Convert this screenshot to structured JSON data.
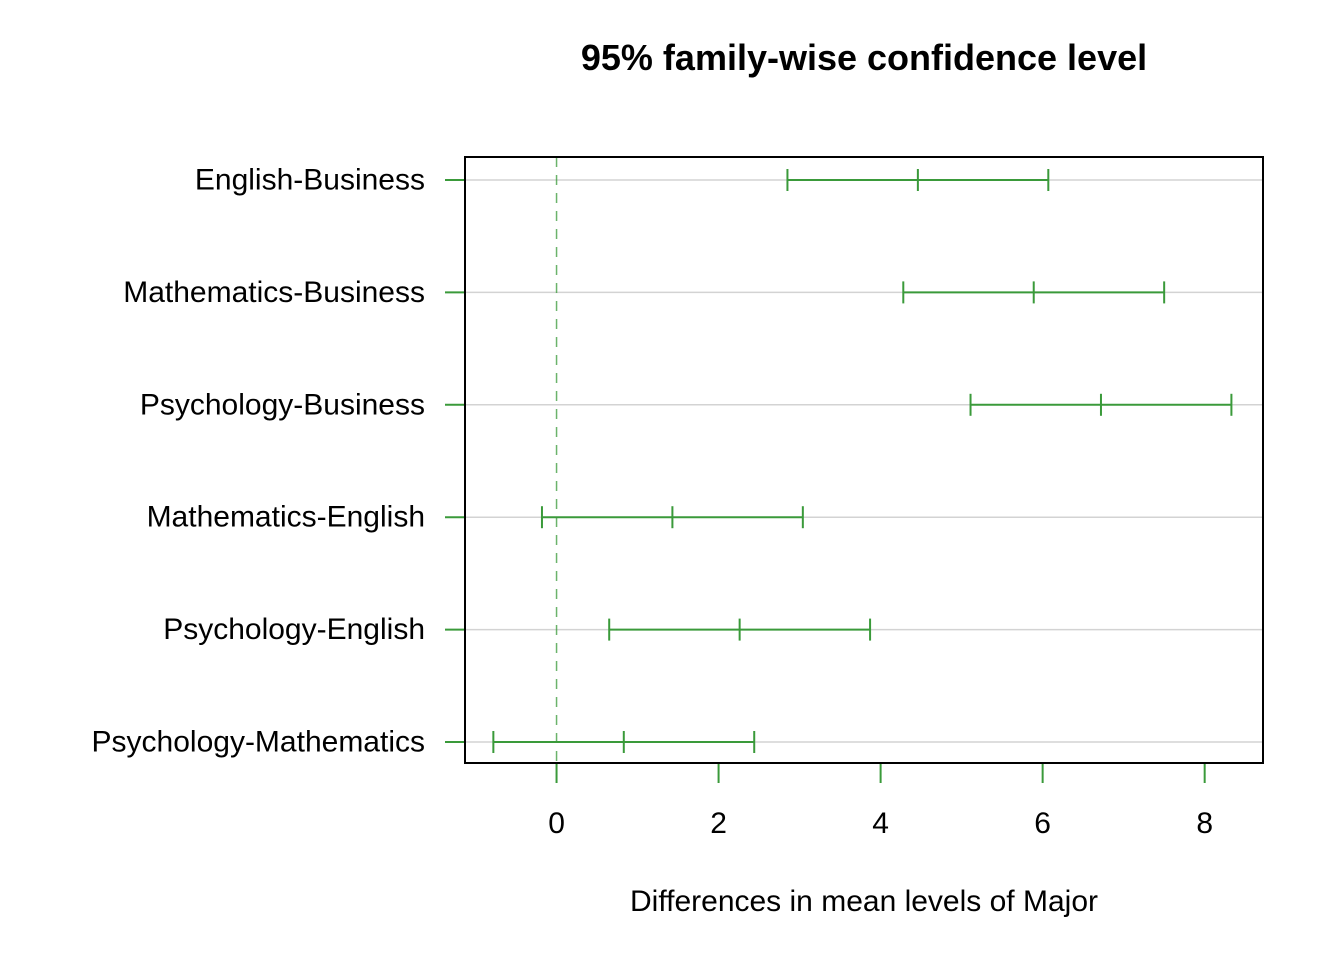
{
  "chart_data": {
    "type": "scatter",
    "subtype": "confidence-interval",
    "title": "95% family-wise confidence level",
    "xlabel": "Differences in mean levels of Major",
    "ylabel": "",
    "xlim": [
      -1.13,
      8.72
    ],
    "x_ticks": [
      0,
      2,
      4,
      6,
      8
    ],
    "reference_line": 0,
    "grid": true,
    "color": "#3a9a3a",
    "grid_color": "#d3d3d3",
    "categories": [
      "English-Business",
      "Mathematics-Business",
      "Psychology-Business",
      "Mathematics-English",
      "Psychology-English",
      "Psychology-Mathematics"
    ],
    "series": [
      {
        "lower": [
          2.85,
          4.28,
          5.11,
          -0.18,
          0.65,
          -0.78
        ],
        "estimate": [
          4.46,
          5.89,
          6.72,
          1.43,
          2.26,
          0.83
        ],
        "upper": [
          6.07,
          7.5,
          8.33,
          3.04,
          3.87,
          2.44
        ]
      }
    ]
  }
}
